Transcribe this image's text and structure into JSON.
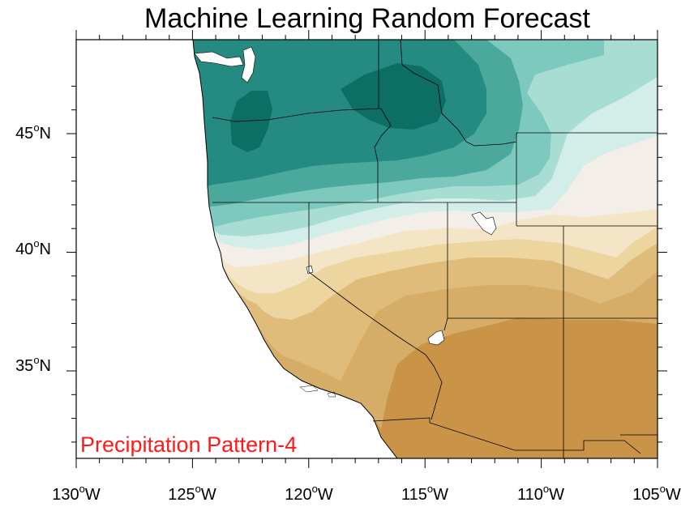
{
  "title": "Machine Learning Random Forecast",
  "pattern_label": "Precipitation Pattern-4",
  "x_ticks": [
    {
      "deg": "130",
      "hemi": "W"
    },
    {
      "deg": "125",
      "hemi": "W"
    },
    {
      "deg": "120",
      "hemi": "W"
    },
    {
      "deg": "115",
      "hemi": "W"
    },
    {
      "deg": "110",
      "hemi": "W"
    },
    {
      "deg": "105",
      "hemi": "W"
    }
  ],
  "y_ticks": [
    {
      "deg": "45",
      "hemi": "N"
    },
    {
      "deg": "40",
      "hemi": "N"
    },
    {
      "deg": "35",
      "hemi": "N"
    }
  ],
  "colors": {
    "teal_darkest": "#0d6e66",
    "teal_dark": "#248a82",
    "teal_mid": "#4aa89d",
    "teal_light": "#7dc9bd",
    "teal_pale": "#a8ddd4",
    "mint_paler": "#d3ede8",
    "neutral": "#f3efe8",
    "tan_pale": "#f4e5c6",
    "tan_light": "#ecd59f",
    "tan_mid": "#dfbc79",
    "tan_dark": "#cf9f55",
    "brown": "#c99448",
    "label_red": "#ff1a1a"
  }
}
